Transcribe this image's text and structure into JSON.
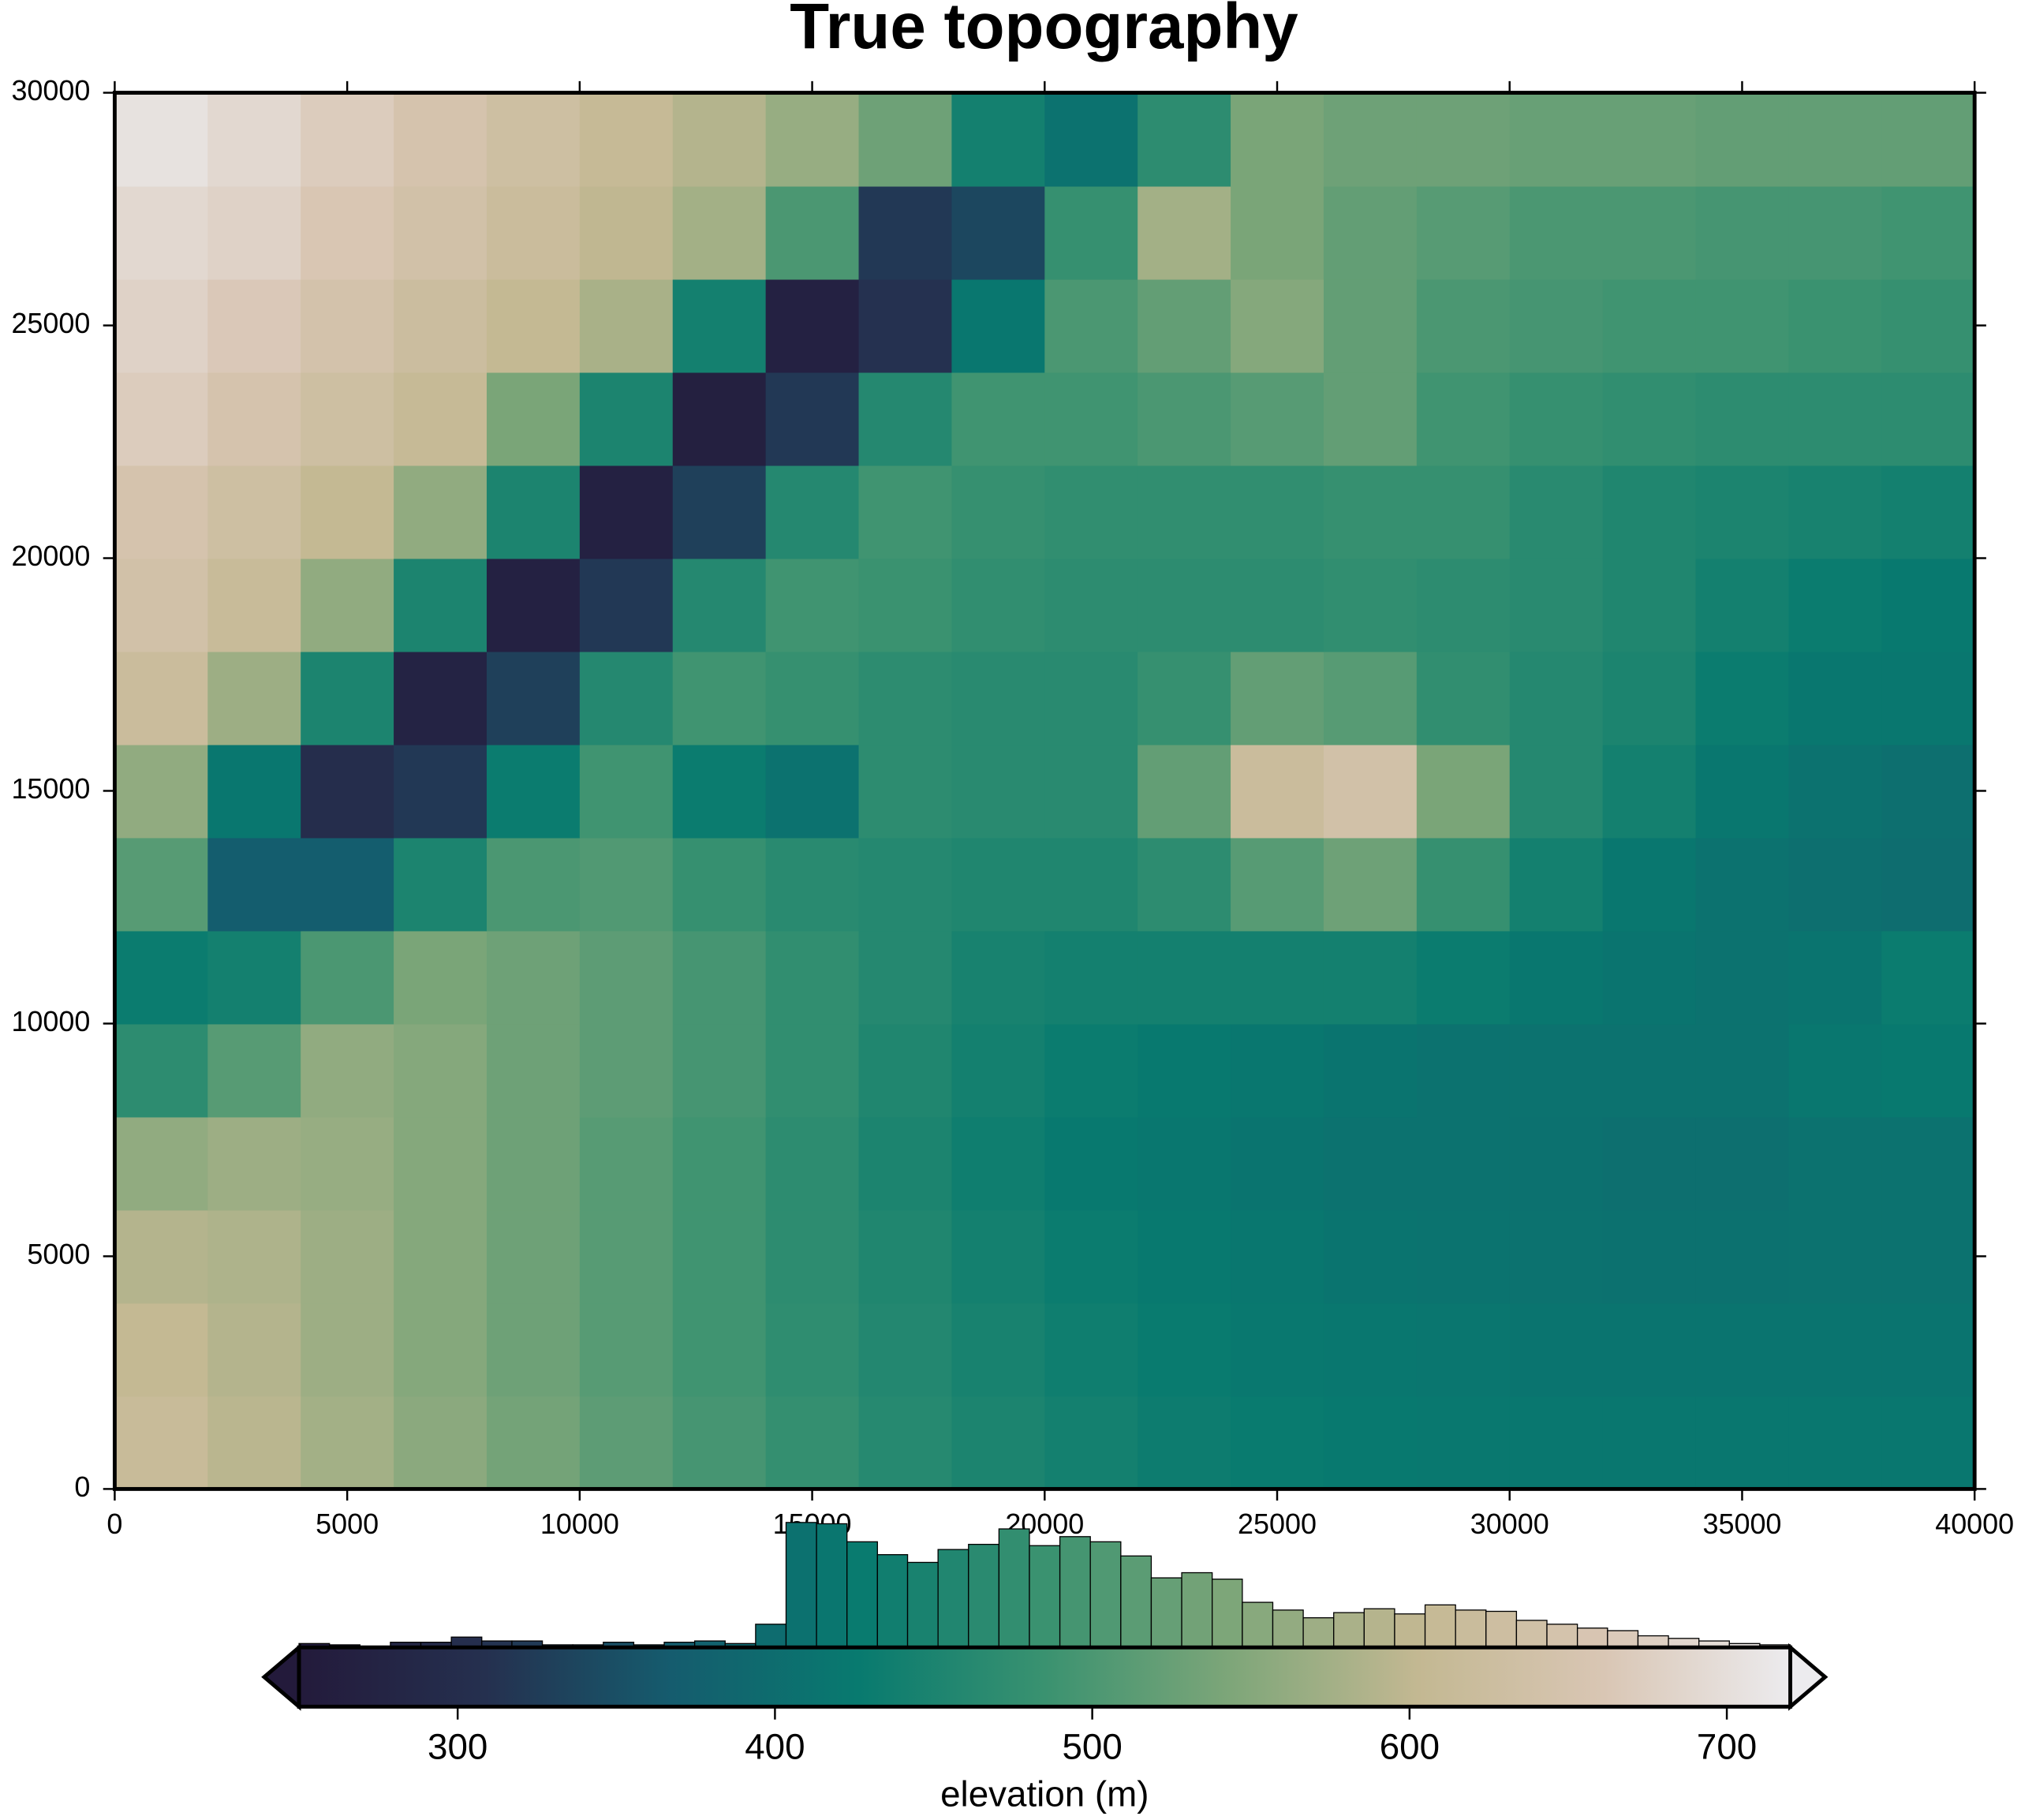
{
  "chart_data": {
    "type": "heatmap",
    "title": "True topography",
    "x": [
      1000,
      3000,
      5000,
      7000,
      9000,
      11000,
      13000,
      15000,
      17000,
      19000,
      21000,
      23000,
      25000,
      27000,
      29000,
      31000,
      33000,
      35000,
      37000,
      39000
    ],
    "y": [
      1000,
      3000,
      5000,
      7000,
      9000,
      11000,
      13000,
      15000,
      17000,
      19000,
      21000,
      23000,
      25000,
      27000,
      29000
    ],
    "z": [
      [
        615,
        595,
        575,
        555,
        535,
        515,
        495,
        478,
        462,
        450,
        440,
        432,
        428,
        425,
        423,
        420,
        420,
        420,
        420,
        420
      ],
      [
        605,
        590,
        570,
        550,
        530,
        510,
        490,
        472,
        458,
        445,
        435,
        428,
        422,
        420,
        418,
        415,
        415,
        415,
        415,
        415
      ],
      [
        590,
        585,
        570,
        550,
        530,
        510,
        490,
        470,
        455,
        440,
        430,
        425,
        420,
        415,
        412,
        410,
        408,
        408,
        410,
        410
      ],
      [
        560,
        570,
        565,
        550,
        530,
        510,
        490,
        470,
        450,
        435,
        425,
        420,
        415,
        410,
        410,
        408,
        405,
        405,
        410,
        410
      ],
      [
        470,
        510,
        560,
        550,
        530,
        515,
        495,
        475,
        455,
        440,
        430,
        425,
        420,
        415,
        410,
        410,
        410,
        410,
        420,
        425
      ],
      [
        430,
        440,
        500,
        540,
        530,
        515,
        495,
        475,
        460,
        445,
        440,
        440,
        440,
        440,
        430,
        420,
        415,
        410,
        415,
        430
      ],
      [
        510,
        370,
        370,
        450,
        500,
        505,
        480,
        465,
        460,
        455,
        455,
        470,
        510,
        530,
        480,
        440,
        420,
        410,
        405,
        400
      ],
      [
        560,
        420,
        300,
        320,
        430,
        490,
        430,
        410,
        470,
        465,
        465,
        520,
        620,
        640,
        540,
        460,
        440,
        420,
        410,
        405
      ],
      [
        620,
        570,
        450,
        275,
        330,
        460,
        490,
        480,
        470,
        465,
        465,
        480,
        520,
        510,
        475,
        460,
        450,
        430,
        420,
        420
      ],
      [
        640,
        615,
        560,
        450,
        270,
        320,
        460,
        490,
        485,
        475,
        470,
        470,
        470,
        475,
        470,
        465,
        455,
        440,
        430,
        425
      ],
      [
        650,
        630,
        605,
        560,
        450,
        270,
        330,
        460,
        490,
        480,
        475,
        475,
        475,
        480,
        480,
        465,
        455,
        450,
        445,
        440
      ],
      [
        670,
        650,
        630,
        610,
        540,
        450,
        265,
        320,
        460,
        490,
        490,
        500,
        510,
        520,
        490,
        480,
        475,
        470,
        470,
        470
      ],
      [
        680,
        665,
        645,
        625,
        605,
        580,
        440,
        270,
        310,
        420,
        500,
        520,
        550,
        520,
        500,
        495,
        490,
        490,
        485,
        480
      ],
      [
        690,
        680,
        660,
        640,
        620,
        600,
        575,
        500,
        320,
        340,
        480,
        575,
        540,
        520,
        510,
        500,
        500,
        495,
        495,
        490
      ],
      [
        705,
        690,
        670,
        650,
        630,
        610,
        590,
        565,
        530,
        440,
        410,
        470,
        540,
        530,
        530,
        525,
        525,
        520,
        520,
        520
      ]
    ],
    "xlim": [
      0,
      40000
    ],
    "ylim": [
      0,
      30000
    ],
    "xticks": [
      0,
      5000,
      10000,
      15000,
      20000,
      25000,
      30000,
      35000,
      40000
    ],
    "yticks": [
      0,
      5000,
      10000,
      15000,
      20000,
      25000,
      30000
    ],
    "colormap": [
      "#231a3b",
      "#25304f",
      "#155c6e",
      "#087a6f",
      "#3a9270",
      "#7ea679",
      "#c3b892",
      "#d9c6b4",
      "#ecebee"
    ],
    "cbar_lim": [
      250,
      720
    ],
    "cbar_ticks": [
      300,
      400,
      500,
      600,
      700
    ],
    "cbar_label": "elevation (m)",
    "hist": {
      "bins": [
        250,
        259.6,
        269.2,
        278.8,
        288.4,
        298.0,
        307.6,
        317.1,
        326.7,
        336.3,
        345.9,
        355.5,
        365.1,
        374.7,
        384.3,
        393.9,
        403.5,
        413.1,
        422.7,
        432.3,
        441.8,
        451.4,
        461.0,
        470.6,
        480.2,
        489.8,
        499.4,
        509.0,
        518.6,
        528.2,
        537.8,
        547.3,
        556.9,
        566.5,
        576.1,
        585.7,
        595.3,
        604.9,
        614.5,
        624.1,
        633.7,
        643.3,
        652.9,
        662.4,
        672.0,
        681.6,
        691.2,
        700.8,
        710.4,
        720
      ],
      "counts": [
        3,
        2,
        1,
        4,
        4,
        8,
        5,
        5,
        2,
        2,
        4,
        2,
        4,
        5,
        3,
        18,
        97,
        96,
        82,
        72,
        66,
        76,
        80,
        92,
        79,
        86,
        82,
        71,
        54,
        58,
        53,
        35,
        29,
        23,
        27,
        30,
        26,
        33,
        29,
        28,
        21,
        18,
        15,
        13,
        9,
        7,
        5,
        3,
        2
      ]
    }
  }
}
